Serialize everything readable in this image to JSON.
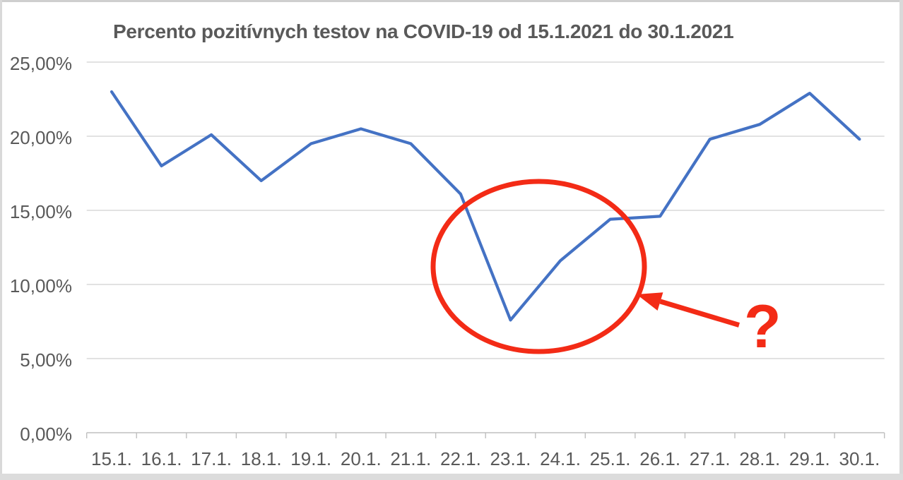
{
  "chart_data": {
    "type": "line",
    "title": "Percento pozitívnych testov na COVID-19 od 15.1.2021 do 30.1.2021",
    "xlabel": "",
    "ylabel": "",
    "categories": [
      "15.1.",
      "16.1.",
      "17.1.",
      "18.1.",
      "19.1.",
      "20.1.",
      "21.1.",
      "22.1.",
      "23.1.",
      "24.1.",
      "25.1.",
      "26.1.",
      "27.1.",
      "28.1.",
      "29.1.",
      "30.1."
    ],
    "values": [
      23.0,
      18.0,
      20.1,
      17.0,
      19.5,
      20.5,
      19.5,
      16.1,
      7.6,
      11.6,
      14.4,
      14.6,
      19.8,
      20.8,
      22.9,
      19.8
    ],
    "ylim": [
      0,
      25
    ],
    "y_ticks": [
      0,
      5,
      10,
      15,
      20,
      25
    ],
    "y_tick_labels": [
      "0,00%",
      "5,00%",
      "10,00%",
      "15,00%",
      "20,00%",
      "25,00%"
    ],
    "grid": true,
    "legend": false,
    "colors": {
      "line": "#4472C4",
      "title_text": "#595959",
      "axis_text": "#595959",
      "gridline": "#d9d9d9",
      "axis_line": "#bfbfbf"
    }
  },
  "annotation": {
    "shape": "ellipse",
    "question_mark": "?",
    "color": "#F32B16"
  }
}
